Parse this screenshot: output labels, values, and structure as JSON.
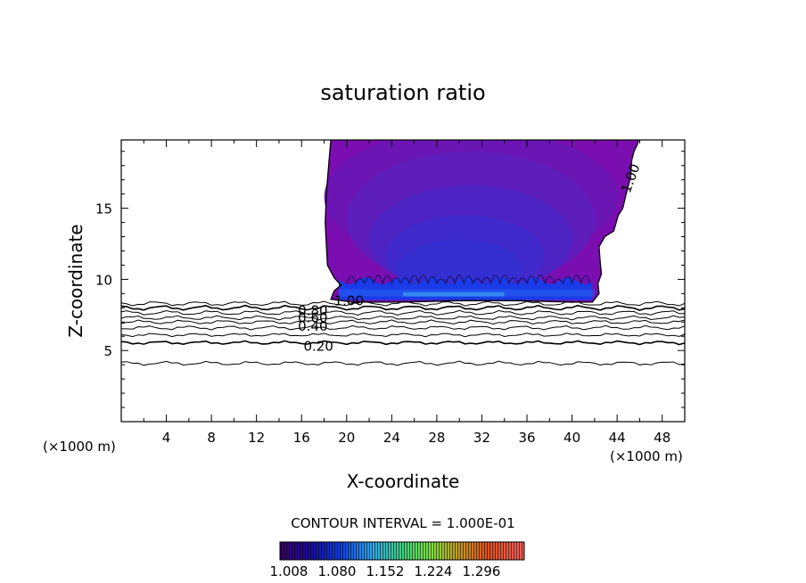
{
  "chart_data": {
    "type": "contour",
    "title": "saturation ratio",
    "xlabel": "X-coordinate",
    "ylabel": "Z-coordinate",
    "x_unit": "(×1000 m)",
    "x_ticks": [
      4,
      8,
      12,
      16,
      20,
      24,
      28,
      32,
      36,
      40,
      44,
      48
    ],
    "y_ticks": [
      5,
      10,
      15
    ],
    "xlim": [
      0,
      50
    ],
    "ylim": [
      0,
      19.8
    ],
    "contour_interval_text": "CONTOUR INTERVAL = 1.000E-01",
    "contour_labels": [
      {
        "text": "1.00",
        "x": 45.2,
        "y": 17.1
      },
      {
        "text": "1.00",
        "x": 20.2,
        "y": 8.5
      },
      {
        "text": "0.80",
        "x": 17.0,
        "y": 7.8
      },
      {
        "text": "0.60",
        "x": 17.0,
        "y": 7.3
      },
      {
        "text": "0.40",
        "x": 17.0,
        "y": 6.7
      },
      {
        "text": "0.20",
        "x": 17.5,
        "y": 5.3
      }
    ],
    "colorbar_labels": [
      "1.008",
      "1.080",
      "1.152",
      "1.224",
      "1.296"
    ],
    "cloud_boundary": [
      [
        18.6,
        19.8
      ],
      [
        18.4,
        18.0
      ],
      [
        18.2,
        16.0
      ],
      [
        18.1,
        14.0
      ],
      [
        18.2,
        12.5
      ],
      [
        18.3,
        11.0
      ],
      [
        18.9,
        10.1
      ],
      [
        19.5,
        9.6
      ],
      [
        18.9,
        9.2
      ],
      [
        18.6,
        8.6
      ],
      [
        20.5,
        8.4
      ],
      [
        25,
        8.4
      ],
      [
        30,
        8.5
      ],
      [
        35,
        8.5
      ],
      [
        40,
        8.4
      ],
      [
        41.8,
        8.4
      ],
      [
        42.4,
        9.0
      ],
      [
        42.3,
        9.7
      ],
      [
        42.6,
        10.4
      ],
      [
        42.5,
        11.2
      ],
      [
        42.4,
        12.3
      ],
      [
        42.9,
        13.0
      ],
      [
        43.7,
        13.4
      ],
      [
        44.1,
        14.5
      ],
      [
        44.5,
        15.0
      ],
      [
        44.8,
        16.0
      ],
      [
        45.2,
        17.2
      ],
      [
        45.3,
        18.4
      ],
      [
        45.5,
        19.0
      ],
      [
        45.8,
        19.5
      ],
      [
        45.9,
        19.8
      ]
    ],
    "subsaturated_contours": [
      {
        "level": 0.9,
        "z": 8.3,
        "amp": 0.12
      },
      {
        "level": 0.8,
        "z": 8.0,
        "amp": 0.12
      },
      {
        "level": 0.7,
        "z": 7.65,
        "amp": 0.12
      },
      {
        "level": 0.6,
        "z": 7.3,
        "amp": 0.1
      },
      {
        "level": 0.5,
        "z": 7.0,
        "amp": 0.1
      },
      {
        "level": 0.4,
        "z": 6.6,
        "amp": 0.1
      },
      {
        "level": 0.3,
        "z": 6.1,
        "amp": 0.08
      },
      {
        "level": 0.2,
        "z": 5.55,
        "amp": 0.08
      },
      {
        "level": 0.1,
        "z": 4.1,
        "amp": 0.1
      }
    ]
  }
}
